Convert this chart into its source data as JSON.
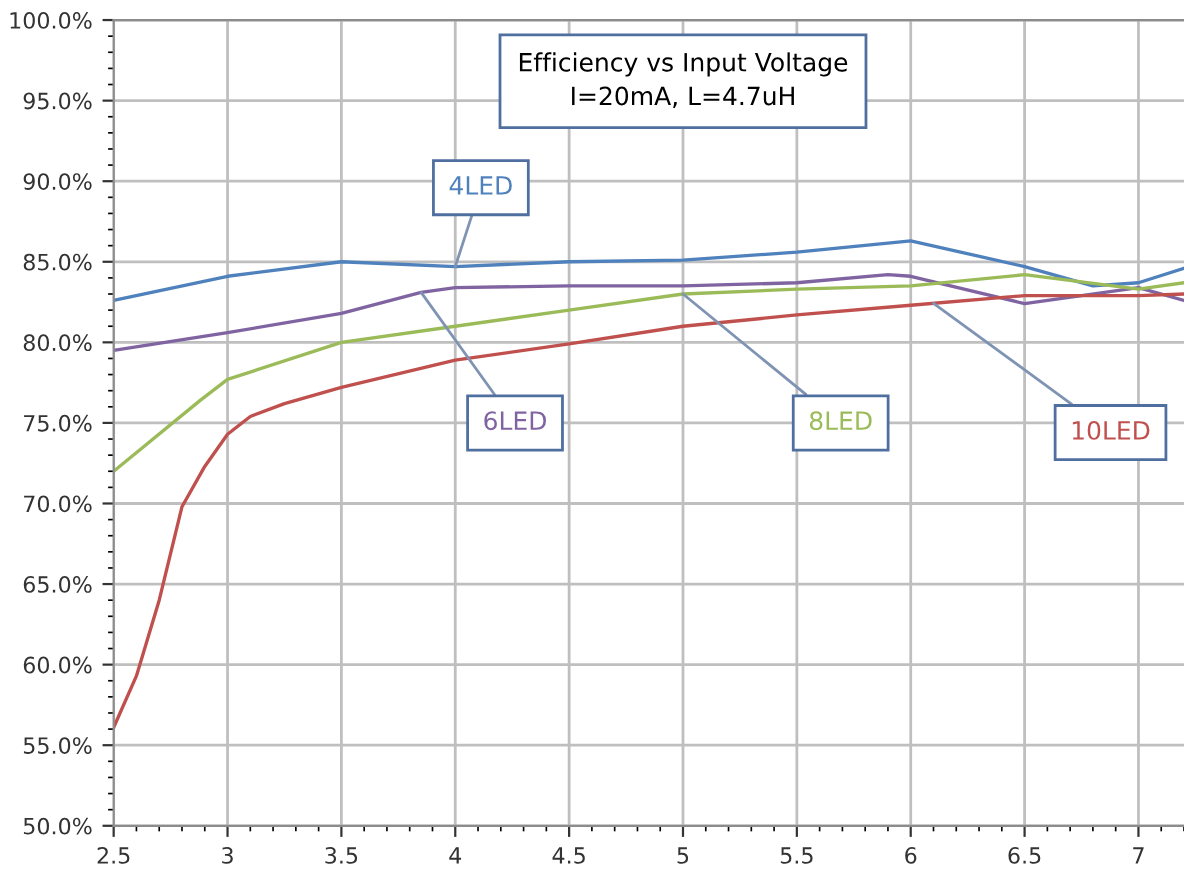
{
  "chart_data": {
    "type": "line",
    "title": "Efficiency vs Input Voltage",
    "subtitle": "I=20mA, L=4.7uH",
    "xlim": [
      2.5,
      7.2
    ],
    "xticks": [
      2.5,
      3,
      3.5,
      4,
      4.5,
      5,
      5.5,
      6,
      6.5,
      7
    ],
    "ylim": [
      50,
      100
    ],
    "yticks": [
      {
        "value": 50,
        "label": "50.0%"
      },
      {
        "value": 55,
        "label": "55.0%"
      },
      {
        "value": 60,
        "label": "60.0%"
      },
      {
        "value": 65,
        "label": "65.0%"
      },
      {
        "value": 70,
        "label": "70.0%"
      },
      {
        "value": 75,
        "label": "75.0%"
      },
      {
        "value": 80,
        "label": "80.0%"
      },
      {
        "value": 85,
        "label": "85.0%"
      },
      {
        "value": 90,
        "label": "90.0%"
      },
      {
        "value": 95,
        "label": "95.0%"
      },
      {
        "value": 100,
        "label": "100.0%"
      }
    ],
    "grid": true,
    "legend": false,
    "marker": "none",
    "line_style": "solid",
    "series": [
      {
        "name": "4LED",
        "color": "#4f81bd",
        "x": [
          2.5,
          3,
          3.5,
          4,
          4.5,
          5,
          5.5,
          6,
          6.5,
          6.8,
          7,
          7.2
        ],
        "values": [
          82.6,
          84.1,
          85.0,
          84.7,
          85.0,
          85.1,
          85.6,
          86.3,
          84.7,
          83.5,
          83.7,
          84.6
        ]
      },
      {
        "name": "6LED",
        "color": "#8064a2",
        "x": [
          2.5,
          3,
          3.5,
          3.85,
          4,
          4.5,
          5,
          5.5,
          5.9,
          6,
          6.5,
          7,
          7.2
        ],
        "values": [
          79.5,
          80.6,
          81.8,
          83.1,
          83.4,
          83.5,
          83.5,
          83.7,
          84.2,
          84.1,
          82.4,
          83.4,
          82.6
        ]
      },
      {
        "name": "8LED",
        "color": "#9bbb59",
        "x": [
          2.5,
          2.88,
          3,
          3.5,
          4,
          4.5,
          5,
          5.5,
          6,
          6.5,
          7,
          7.2
        ],
        "values": [
          72.0,
          76.4,
          77.7,
          80.0,
          81.0,
          82.0,
          83.0,
          83.3,
          83.5,
          84.2,
          83.3,
          83.7
        ]
      },
      {
        "name": "10LED",
        "color": "#c0504d",
        "x": [
          2.5,
          2.6,
          2.7,
          2.8,
          2.9,
          3,
          3.1,
          3.25,
          3.5,
          4,
          4.5,
          5,
          5.5,
          6,
          6.5,
          7,
          7.2
        ],
        "values": [
          56.1,
          59.3,
          64.0,
          69.8,
          72.3,
          74.3,
          75.4,
          76.2,
          77.2,
          78.9,
          79.9,
          81.0,
          81.7,
          82.3,
          82.9,
          82.9,
          83.0
        ]
      }
    ]
  }
}
